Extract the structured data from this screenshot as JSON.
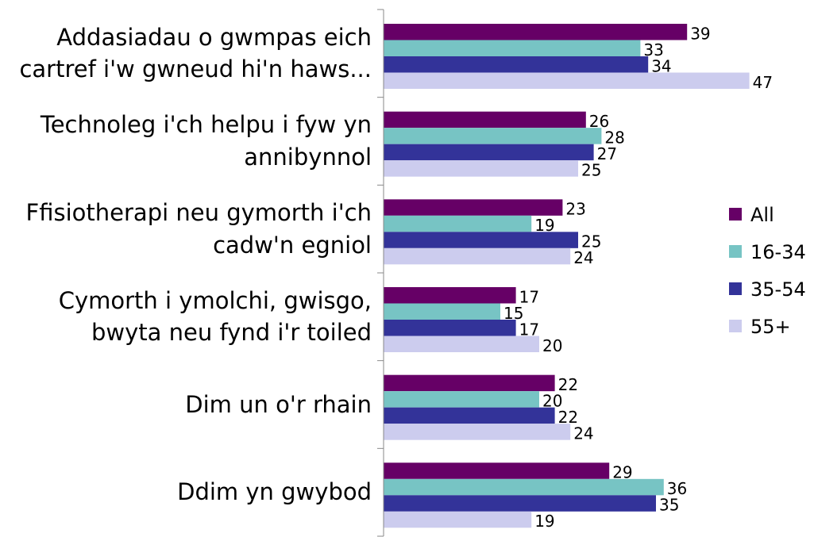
{
  "chart_data": {
    "type": "barh",
    "categories": [
      "Addasiadau o gwmpas eich cartref i'w gwneud hi'n haws...",
      "Technoleg i'ch helpu i fyw yn annibynnol",
      "Ffisiotherapi neu gymorth i'ch cadw'n egniol",
      "Cymorth i ymolchi, gwisgo, bwyta neu fynd i'r toiled",
      "Dim un o'r rhain",
      "Ddim yn gwybod"
    ],
    "series": [
      {
        "name": "All",
        "color": "#660066",
        "values": [
          39,
          26,
          23,
          17,
          22,
          29
        ]
      },
      {
        "name": "16-34",
        "color": "#77c4c4",
        "values": [
          33,
          28,
          19,
          15,
          20,
          36
        ]
      },
      {
        "name": "35-54",
        "color": "#333399",
        "values": [
          34,
          27,
          25,
          17,
          22,
          35
        ]
      },
      {
        "name": "55+",
        "color": "#ccccee",
        "values": [
          47,
          25,
          24,
          20,
          24,
          19
        ]
      }
    ],
    "xlim": [
      0,
      55
    ],
    "legend": "right"
  }
}
